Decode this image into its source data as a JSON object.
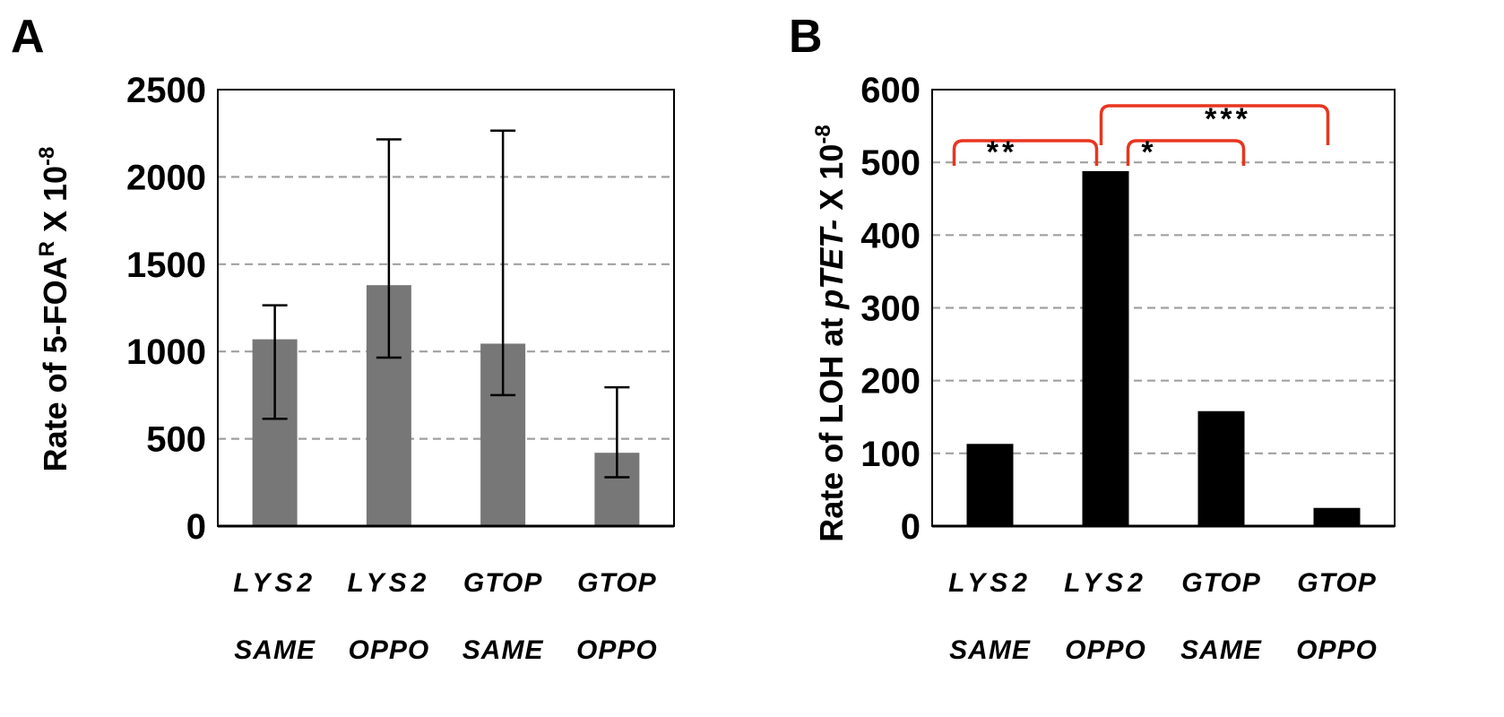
{
  "colors": {
    "bar_a": "#777777",
    "bar_b": "#000000",
    "grid": "#a0a0a0",
    "bracket": "#e8351e"
  },
  "panels": {
    "a": {
      "letter": "A",
      "ylabel_main": "Rate of 5-FOA",
      "ylabel_sup": "R",
      "ylabel_tail": " X 10",
      "ylabel_exp": "-8"
    },
    "b": {
      "letter": "B",
      "ylabel_main": "Rate of  LOH at ",
      "ylabel_italic": "pTET-",
      "ylabel_tail": " X 10",
      "ylabel_exp": "-8"
    }
  },
  "chart_data": [
    {
      "type": "bar",
      "panel": "A",
      "categories": [
        [
          "LYS2",
          "SAME"
        ],
        [
          "LYS2",
          "OPPO"
        ],
        [
          "GTOP",
          "SAME"
        ],
        [
          "GTOP",
          "OPPO"
        ]
      ],
      "values": [
        1070,
        1380,
        1045,
        420
      ],
      "error_low": [
        615,
        965,
        750,
        280
      ],
      "error_high": [
        1265,
        2215,
        2265,
        795
      ],
      "ylim": [
        0,
        2500
      ],
      "yticks": [
        0,
        500,
        1000,
        1500,
        2000,
        2500
      ],
      "grid": true,
      "color": "#777777"
    },
    {
      "type": "bar",
      "panel": "B",
      "categories": [
        [
          "LYS2",
          "SAME"
        ],
        [
          "LYS2",
          "OPPO"
        ],
        [
          "GTOP",
          "SAME"
        ],
        [
          "GTOP",
          "OPPO"
        ]
      ],
      "values": [
        113,
        488,
        158,
        25
      ],
      "ylim": [
        0,
        600
      ],
      "yticks": [
        0,
        100,
        200,
        300,
        400,
        500,
        600
      ],
      "grid": true,
      "color": "#000000",
      "significance": [
        {
          "from": 0,
          "to": 1,
          "label": "**"
        },
        {
          "from": 1,
          "to": 2,
          "label": "*"
        },
        {
          "from": 1,
          "to": 3,
          "label": "***"
        }
      ]
    }
  ]
}
